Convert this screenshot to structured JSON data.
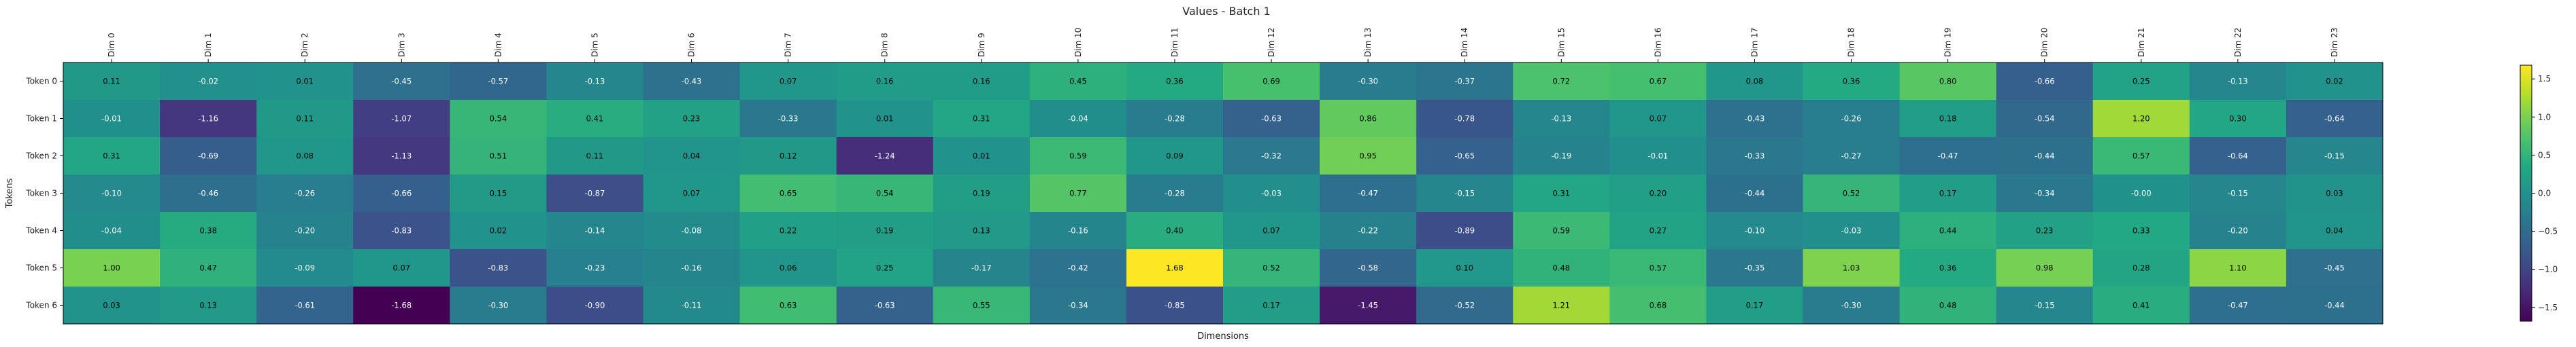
{
  "chart_data": {
    "type": "heatmap",
    "title": "Values - Batch 1",
    "xlabel": "Dimensions",
    "ylabel": "Tokens",
    "x_categories": [
      "Dim 0",
      "Dim 1",
      "Dim 2",
      "Dim 3",
      "Dim 4",
      "Dim 5",
      "Dim 6",
      "Dim 7",
      "Dim 8",
      "Dim 9",
      "Dim 10",
      "Dim 11",
      "Dim 12",
      "Dim 13",
      "Dim 14",
      "Dim 15",
      "Dim 16",
      "Dim 17",
      "Dim 18",
      "Dim 19",
      "Dim 20",
      "Dim 21",
      "Dim 22",
      "Dim 23"
    ],
    "y_categories": [
      "Token 0",
      "Token 1",
      "Token 2",
      "Token 3",
      "Token 4",
      "Token 5",
      "Token 6"
    ],
    "values": [
      [
        0.11,
        -0.02,
        0.01,
        -0.45,
        -0.57,
        -0.13,
        -0.43,
        0.07,
        0.16,
        0.16,
        0.45,
        0.36,
        0.69,
        -0.3,
        -0.37,
        0.72,
        0.67,
        0.08,
        0.36,
        0.8,
        -0.66,
        0.25,
        -0.13,
        0.02
      ],
      [
        -0.01,
        -1.16,
        0.11,
        -1.07,
        0.54,
        0.41,
        0.23,
        -0.33,
        0.01,
        0.31,
        -0.04,
        -0.28,
        -0.63,
        0.86,
        -0.78,
        -0.13,
        0.07,
        -0.43,
        -0.26,
        0.18,
        -0.54,
        1.2,
        0.3,
        -0.64
      ],
      [
        0.31,
        -0.69,
        0.08,
        -1.13,
        0.51,
        0.11,
        0.04,
        0.12,
        -1.24,
        0.01,
        0.59,
        0.09,
        -0.32,
        0.95,
        -0.65,
        -0.19,
        -0.01,
        -0.33,
        -0.27,
        -0.47,
        -0.44,
        0.57,
        -0.64,
        -0.15
      ],
      [
        -0.1,
        -0.46,
        -0.26,
        -0.66,
        0.15,
        -0.87,
        0.07,
        0.65,
        0.54,
        0.19,
        0.77,
        -0.28,
        -0.03,
        -0.47,
        -0.15,
        0.31,
        0.2,
        -0.44,
        0.52,
        0.17,
        -0.34,
        -0.0,
        -0.15,
        0.03
      ],
      [
        -0.04,
        0.38,
        -0.2,
        -0.83,
        0.02,
        -0.14,
        -0.08,
        0.22,
        0.19,
        0.13,
        -0.16,
        0.4,
        0.07,
        -0.22,
        -0.89,
        0.59,
        0.27,
        -0.1,
        -0.03,
        0.44,
        0.23,
        0.33,
        -0.2,
        0.04
      ],
      [
        1.0,
        0.47,
        -0.09,
        0.07,
        -0.83,
        -0.23,
        -0.16,
        0.06,
        0.25,
        -0.17,
        -0.42,
        1.68,
        0.52,
        -0.58,
        0.1,
        0.48,
        0.57,
        -0.35,
        1.03,
        0.36,
        0.98,
        0.28,
        1.1,
        -0.45
      ],
      [
        0.03,
        0.13,
        -0.61,
        -1.68,
        -0.3,
        -0.9,
        -0.11,
        0.63,
        -0.63,
        0.55,
        -0.34,
        -0.85,
        0.17,
        -1.45,
        -0.52,
        1.21,
        0.68,
        0.17,
        -0.3,
        0.48,
        -0.15,
        0.41,
        -0.47,
        -0.44
      ]
    ],
    "value_labels": [
      [
        "0.11",
        "-0.02",
        "0.01",
        "-0.45",
        "-0.57",
        "-0.13",
        "-0.43",
        "0.07",
        "0.16",
        "0.16",
        "0.45",
        "0.36",
        "0.69",
        "-0.30",
        "-0.37",
        "0.72",
        "0.67",
        "0.08",
        "0.36",
        "0.80",
        "-0.66",
        "0.25",
        "-0.13",
        "0.02"
      ],
      [
        "-0.01",
        "-1.16",
        "0.11",
        "-1.07",
        "0.54",
        "0.41",
        "0.23",
        "-0.33",
        "0.01",
        "0.31",
        "-0.04",
        "-0.28",
        "-0.63",
        "0.86",
        "-0.78",
        "-0.13",
        "0.07",
        "-0.43",
        "-0.26",
        "0.18",
        "-0.54",
        "1.20",
        "0.30",
        "-0.64"
      ],
      [
        "0.31",
        "-0.69",
        "0.08",
        "-1.13",
        "0.51",
        "0.11",
        "0.04",
        "0.12",
        "-1.24",
        "0.01",
        "0.59",
        "0.09",
        "-0.32",
        "0.95",
        "-0.65",
        "-0.19",
        "-0.01",
        "-0.33",
        "-0.27",
        "-0.47",
        "-0.44",
        "0.57",
        "-0.64",
        "-0.15"
      ],
      [
        "-0.10",
        "-0.46",
        "-0.26",
        "-0.66",
        "0.15",
        "-0.87",
        "0.07",
        "0.65",
        "0.54",
        "0.19",
        "0.77",
        "-0.28",
        "-0.03",
        "-0.47",
        "-0.15",
        "0.31",
        "0.20",
        "-0.44",
        "0.52",
        "0.17",
        "-0.34",
        "-0.00",
        "-0.15",
        "0.03"
      ],
      [
        "-0.04",
        "0.38",
        "-0.20",
        "-0.83",
        "0.02",
        "-0.14",
        "-0.08",
        "0.22",
        "0.19",
        "0.13",
        "-0.16",
        "0.40",
        "0.07",
        "-0.22",
        "-0.89",
        "0.59",
        "0.27",
        "-0.10",
        "-0.03",
        "0.44",
        "0.23",
        "0.33",
        "-0.20",
        "0.04"
      ],
      [
        "1.00",
        "0.47",
        "-0.09",
        "0.07",
        "-0.83",
        "-0.23",
        "-0.16",
        "0.06",
        "0.25",
        "-0.17",
        "-0.42",
        "1.68",
        "0.52",
        "-0.58",
        "0.10",
        "0.48",
        "0.57",
        "-0.35",
        "1.03",
        "0.36",
        "0.98",
        "0.28",
        "1.10",
        "-0.45"
      ],
      [
        "0.03",
        "0.13",
        "-0.61",
        "-1.68",
        "-0.30",
        "-0.90",
        "-0.11",
        "0.63",
        "-0.63",
        "0.55",
        "-0.34",
        "-0.85",
        "0.17",
        "-1.45",
        "-0.52",
        "1.21",
        "0.68",
        "0.17",
        "-0.30",
        "0.48",
        "-0.15",
        "0.41",
        "-0.47",
        "-0.44"
      ]
    ],
    "colormap": "viridis",
    "vmin": -1.68,
    "vmax": 1.68,
    "colorbar_ticks": [
      1.5,
      1.0,
      0.5,
      0.0,
      -0.5,
      -1.0,
      -1.5
    ],
    "colorbar_tick_labels": [
      "1.5",
      "1.0",
      "0.5",
      "0.0",
      "−0.5",
      "−1.0",
      "−1.5"
    ],
    "grid": false,
    "legend": "colorbar-right"
  }
}
